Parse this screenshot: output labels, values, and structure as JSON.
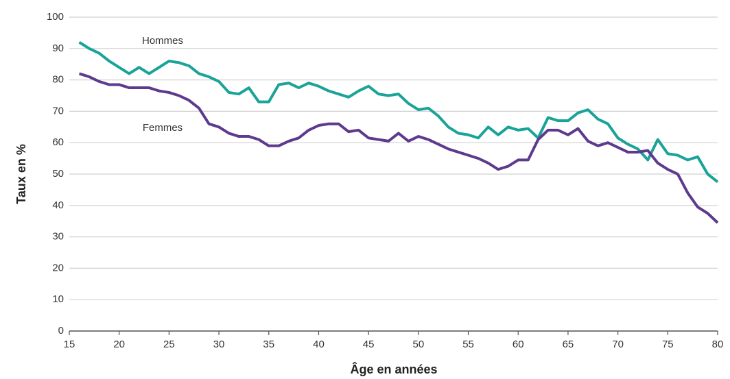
{
  "chart_data": {
    "type": "line",
    "x_label": "Âge en années",
    "y_label": "Taux en %",
    "x": [
      16,
      17,
      18,
      19,
      20,
      21,
      22,
      23,
      24,
      25,
      26,
      27,
      28,
      29,
      30,
      31,
      32,
      33,
      34,
      35,
      36,
      37,
      38,
      39,
      40,
      41,
      42,
      43,
      44,
      45,
      46,
      47,
      48,
      49,
      50,
      51,
      52,
      53,
      54,
      55,
      56,
      57,
      58,
      59,
      60,
      61,
      62,
      63,
      64,
      65,
      66,
      67,
      68,
      69,
      70,
      71,
      72,
      73,
      74,
      75,
      76,
      77,
      78,
      79,
      80
    ],
    "series": [
      {
        "name": "Hommes",
        "color": "#1aa398",
        "values": [
          92,
          90,
          88.5,
          86,
          84,
          82,
          84,
          82,
          84,
          86,
          85.5,
          84.5,
          82,
          81,
          79.5,
          76,
          75.5,
          77.5,
          73,
          73,
          78.5,
          79,
          77.5,
          79,
          78,
          76.5,
          75.5,
          74.5,
          76.5,
          78,
          75.5,
          75,
          75.5,
          72.5,
          70.5,
          71,
          68.5,
          65,
          63,
          62.5,
          61.5,
          65,
          62.5,
          65,
          64,
          64.5,
          61.5,
          68,
          67,
          67,
          69.5,
          70.5,
          67.5,
          66,
          61.5,
          59.5,
          58,
          54.5,
          61,
          56.5,
          56,
          54.5,
          55.5,
          50,
          47.5
        ]
      },
      {
        "name": "Femmes",
        "color": "#5e3a8e",
        "values": [
          82,
          81,
          79.5,
          78.5,
          78.5,
          77.5,
          77.5,
          77.5,
          76.5,
          76,
          75,
          73.5,
          71,
          66,
          65,
          63,
          62,
          62,
          61,
          59,
          59,
          60.5,
          61.5,
          64,
          65.5,
          66,
          66,
          63.5,
          64,
          61.5,
          61,
          60.5,
          63,
          60.5,
          62,
          61,
          59.5,
          58,
          57,
          56,
          55,
          53.5,
          51.5,
          52.5,
          54.5,
          54.5,
          61,
          64,
          64,
          62.5,
          64.5,
          60.5,
          59,
          60,
          58.5,
          57,
          57,
          57.5,
          53.5,
          51.5,
          50,
          44,
          39.5,
          37.5,
          34.5
        ]
      }
    ],
    "xlim": [
      15,
      80
    ],
    "xticks": [
      15,
      20,
      25,
      30,
      35,
      40,
      45,
      50,
      55,
      60,
      65,
      70,
      75,
      80
    ],
    "ylim": [
      0,
      100
    ],
    "yticks": [
      0,
      10,
      20,
      30,
      40,
      50,
      60,
      70,
      80,
      90,
      100
    ],
    "grid": true
  }
}
